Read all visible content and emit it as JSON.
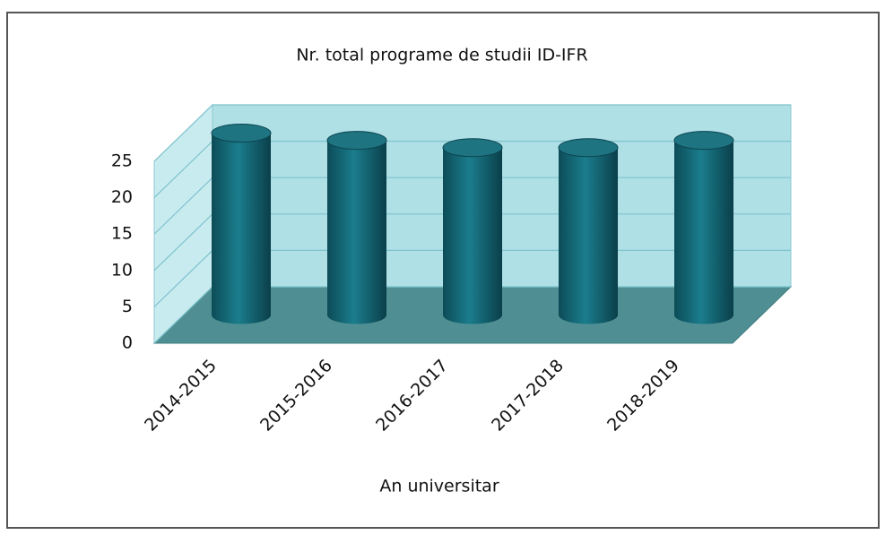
{
  "chart_data": {
    "type": "bar3d",
    "title": "Nr. total programe de studii ID-IFR",
    "x_label": "An universitar",
    "categories": [
      "2014-2015",
      "2015-2016",
      "2016-2017",
      "2017-2018",
      "2018-2019"
    ],
    "values": [
      25,
      24,
      23,
      23,
      24
    ],
    "color": "#16707f",
    "ylim": [
      0,
      25
    ],
    "yticks": [
      0,
      5,
      10,
      15,
      20,
      25
    ],
    "grid": true
  }
}
